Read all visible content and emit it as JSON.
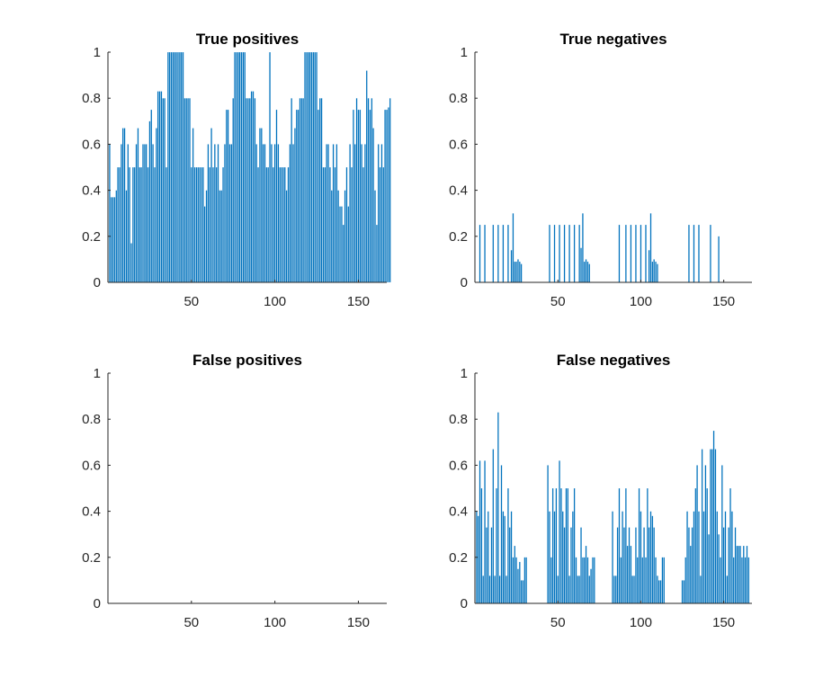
{
  "chart_data": [
    {
      "type": "bar",
      "title": "True positives",
      "xlim": [
        0,
        167
      ],
      "ylim": [
        0,
        1
      ],
      "xticks": [
        "50",
        "100",
        "150"
      ],
      "yticks": [
        "0",
        "0.2",
        "0.4",
        "0.6",
        "0.8",
        "1"
      ],
      "color": "#0072BD",
      "x_start": 1,
      "values": [
        0.6,
        0.37,
        0.37,
        0.37,
        0.4,
        0.5,
        0.5,
        0.6,
        0.67,
        0.67,
        0.4,
        0.6,
        0.5,
        0.17,
        0.5,
        0.5,
        0.6,
        0.67,
        0.5,
        0.5,
        0.6,
        0.6,
        0.6,
        0.5,
        0.7,
        0.75,
        0.6,
        0.5,
        0.67,
        0.83,
        0.83,
        0.83,
        0.8,
        0.8,
        0.5,
        1,
        1,
        1,
        1,
        1,
        1,
        1,
        1,
        1,
        1,
        0.8,
        0.8,
        0.8,
        0.8,
        0.5,
        0.67,
        0.5,
        0.5,
        0.5,
        0.5,
        0.5,
        0.5,
        0.33,
        0.4,
        0.6,
        0.5,
        0.67,
        0.5,
        0.6,
        0.5,
        0.6,
        0.4,
        0.4,
        0.5,
        0.6,
        0.75,
        0.75,
        0.6,
        0.6,
        0.8,
        1,
        1,
        1,
        1,
        1,
        1,
        1,
        0.8,
        0.8,
        0.8,
        0.83,
        0.83,
        0.8,
        0.6,
        0.5,
        0.67,
        0.67,
        0.6,
        0.6,
        0.5,
        0.5,
        1,
        0.6,
        0.5,
        0.6,
        0.75,
        0.6,
        0.5,
        0.5,
        0.5,
        0.5,
        0.4,
        0.5,
        0.6,
        0.8,
        0.6,
        0.67,
        0.75,
        0.75,
        0.8,
        0.8,
        0.8,
        1,
        1,
        1,
        1,
        1,
        1,
        1,
        1,
        0.75,
        0.8,
        0.8,
        0.5,
        0.5,
        0.6,
        0.6,
        0.5,
        0.4,
        0.6,
        0.5,
        0.6,
        0.4,
        0.33,
        0.33,
        0.25,
        0.4,
        0.5,
        0.33,
        0.6,
        0.5,
        0.75,
        0.6,
        0.8,
        0.75,
        0.75,
        0.6,
        0.5,
        0.6,
        0.92,
        0.8,
        0.75,
        0.8,
        0.67,
        0.4,
        0.25,
        0.6,
        0.5,
        0.6,
        0.5,
        0.75,
        0.75,
        0.76,
        0.8
      ]
    },
    {
      "type": "bar",
      "title": "True negatives",
      "xlim": [
        0,
        167
      ],
      "ylim": [
        0,
        1
      ],
      "xticks": [
        "50",
        "100",
        "150"
      ],
      "yticks": [
        "0",
        "0.2",
        "0.4",
        "0.6",
        "0.8",
        "1"
      ],
      "color": "#0072BD",
      "x_start": 1,
      "values": [
        0,
        0,
        0.25,
        0,
        0,
        0.25,
        0,
        0,
        0,
        0,
        0.25,
        0,
        0,
        0.25,
        0,
        0,
        0.25,
        0,
        0,
        0.25,
        0,
        0.14,
        0.3,
        0.09,
        0.09,
        0.1,
        0.09,
        0.08,
        0,
        0,
        0,
        0,
        0,
        0,
        0,
        0,
        0,
        0,
        0,
        0,
        0,
        0,
        0,
        0,
        0.25,
        0,
        0,
        0.25,
        0,
        0,
        0.25,
        0,
        0,
        0.25,
        0,
        0,
        0.25,
        0,
        0,
        0.25,
        0,
        0,
        0.25,
        0.15,
        0.3,
        0.09,
        0.1,
        0.09,
        0.08,
        0,
        0,
        0,
        0,
        0,
        0,
        0,
        0,
        0,
        0,
        0,
        0,
        0,
        0,
        0,
        0,
        0,
        0.25,
        0,
        0,
        0,
        0.25,
        0,
        0,
        0.25,
        0,
        0,
        0.25,
        0,
        0,
        0.25,
        0,
        0,
        0.25,
        0,
        0.14,
        0.3,
        0.09,
        0.1,
        0.09,
        0.08,
        0,
        0,
        0,
        0,
        0,
        0,
        0,
        0,
        0,
        0,
        0,
        0,
        0,
        0,
        0,
        0,
        0,
        0,
        0.25,
        0,
        0,
        0.25,
        0,
        0,
        0.25,
        0,
        0,
        0,
        0,
        0,
        0,
        0.25,
        0,
        0,
        0,
        0,
        0.2,
        0,
        0,
        0,
        0,
        0,
        0,
        0,
        0,
        0,
        0,
        0,
        0,
        0,
        0,
        0,
        0,
        0,
        0,
        0,
        0,
        0,
        0,
        0
      ]
    },
    {
      "type": "bar",
      "title": "False positives",
      "xlim": [
        0,
        167
      ],
      "ylim": [
        0,
        1
      ],
      "xticks": [
        "50",
        "100",
        "150"
      ],
      "yticks": [
        "0",
        "0.2",
        "0.4",
        "0.6",
        "0.8",
        "1"
      ],
      "color": "#0072BD",
      "x_start": 1,
      "values": []
    },
    {
      "type": "bar",
      "title": "False negatives",
      "xlim": [
        0,
        167
      ],
      "ylim": [
        0,
        1
      ],
      "xticks": [
        "50",
        "100",
        "150"
      ],
      "yticks": [
        "0",
        "0.2",
        "0.4",
        "0.6",
        "0.8",
        "1"
      ],
      "color": "#0072BD",
      "x_start": 1,
      "values": [
        0.4,
        0.38,
        0.62,
        0.5,
        0.12,
        0.62,
        0.33,
        0.4,
        0.12,
        0.33,
        0.67,
        0.12,
        0.5,
        0.83,
        0.12,
        0.6,
        0.4,
        0.38,
        0.12,
        0.5,
        0.33,
        0.4,
        0.2,
        0.25,
        0.2,
        0.15,
        0.18,
        0.1,
        0.1,
        0.2,
        0.2,
        0,
        0,
        0,
        0,
        0,
        0,
        0,
        0,
        0,
        0,
        0,
        0,
        0.6,
        0.4,
        0.2,
        0.5,
        0.4,
        0.5,
        0.12,
        0.62,
        0.5,
        0.4,
        0.33,
        0.5,
        0.5,
        0.12,
        0.33,
        0.4,
        0.5,
        0.2,
        0.12,
        0.12,
        0.33,
        0.2,
        0.2,
        0.25,
        0.2,
        0.12,
        0.15,
        0.2,
        0.2,
        0,
        0,
        0,
        0,
        0,
        0,
        0,
        0,
        0,
        0,
        0.4,
        0.12,
        0.12,
        0.33,
        0.5,
        0.2,
        0.4,
        0.33,
        0.5,
        0.25,
        0.33,
        0.25,
        0.12,
        0.12,
        0.33,
        0.2,
        0.5,
        0.4,
        0.2,
        0.33,
        0.2,
        0.5,
        0.33,
        0.4,
        0.38,
        0.33,
        0.2,
        0.12,
        0.1,
        0.1,
        0.2,
        0.2,
        0,
        0,
        0,
        0,
        0,
        0,
        0,
        0,
        0,
        0,
        0.1,
        0.1,
        0.2,
        0.4,
        0.33,
        0.25,
        0.33,
        0.4,
        0.5,
        0.6,
        0.4,
        0.12,
        0.67,
        0.4,
        0.6,
        0.5,
        0.3,
        0.67,
        0.67,
        0.75,
        0.67,
        0.4,
        0.3,
        0.2,
        0.6,
        0.33,
        0.4,
        0.12,
        0.33,
        0.5,
        0.4,
        0.2,
        0.33,
        0.25,
        0.25,
        0.25,
        0.2,
        0.25,
        0.2,
        0.25,
        0.2
      ]
    }
  ]
}
